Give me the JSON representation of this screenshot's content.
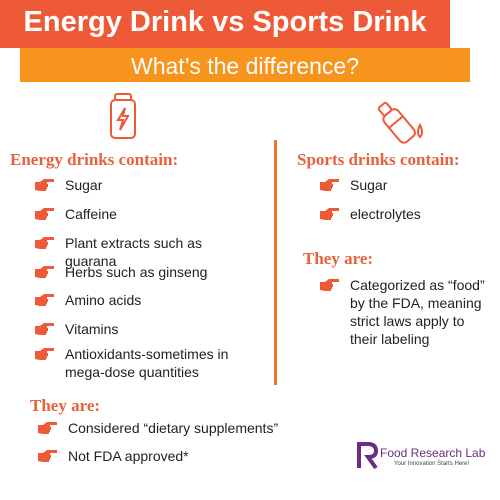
{
  "header": {
    "title": "Energy Drink vs Sports Drink",
    "subtitle": "What’s the difference?"
  },
  "left": {
    "heading": "Energy drinks contain:",
    "items": [
      "Sugar",
      "Caffeine",
      "Plant extracts such as guarana",
      "Herbs such as ginseng",
      "Amino acids",
      "Vitamins",
      "Antioxidants-sometimes in mega-dose quantities"
    ],
    "they_are": "They are:",
    "facts": [
      "Considered “dietary supplements”",
      "Not FDA approved*"
    ]
  },
  "right": {
    "heading": "Sports drinks contain:",
    "items": [
      "Sugar",
      "electrolytes"
    ],
    "they_are": "They are:",
    "facts": [
      "Categorized as “food” by the FDA, meaning strict laws apply to their labeling"
    ]
  },
  "logo": {
    "name": "Food Research Lab",
    "tagline": "Your Innovation Starts Here!"
  }
}
